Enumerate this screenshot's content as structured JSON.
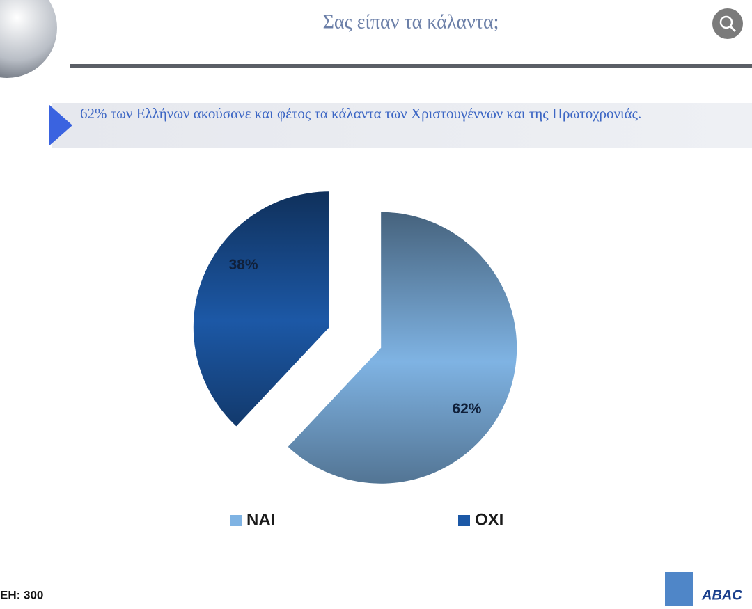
{
  "chart_data": {
    "type": "pie",
    "title": "Σας είπαν τα κάλαντα;",
    "subtitle": "62% των Ελλήνων ακούσανε και φέτος τα κάλαντα των Χριστουγέννων και της Πρωτοχρονιάς.",
    "categories": [
      "NAI",
      "OXI"
    ],
    "values": [
      62,
      38
    ],
    "value_labels": [
      "62%",
      "38%"
    ],
    "colors": [
      "#7fb3e3",
      "#1c58a6"
    ],
    "legend": "bottom",
    "annotations": [
      "ΕΗ: 300",
      "ABAC"
    ]
  }
}
